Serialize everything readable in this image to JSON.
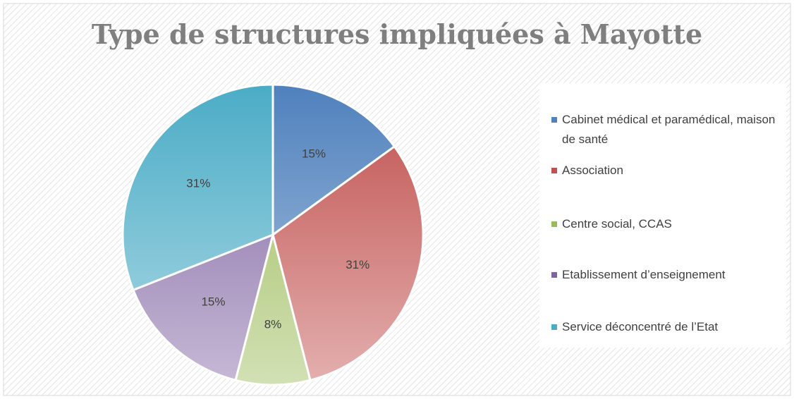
{
  "chart_data": {
    "type": "pie",
    "title": "Type de structures impliquées à Mayotte",
    "categories": [
      "Cabinet médical et paramédical, maison de santé",
      "Association",
      "Centre social, CCAS",
      "Etablissement d’enseignement",
      "Service déconcentré de l’Etat"
    ],
    "values": [
      15,
      31,
      8,
      15,
      31
    ],
    "value_labels": [
      "15%",
      "31%",
      "8%",
      "15%",
      "31%"
    ],
    "colors": [
      "#4f81bd",
      "#c0504d",
      "#9bbb59",
      "#8064a2",
      "#4bacc6"
    ],
    "legend": "right"
  }
}
